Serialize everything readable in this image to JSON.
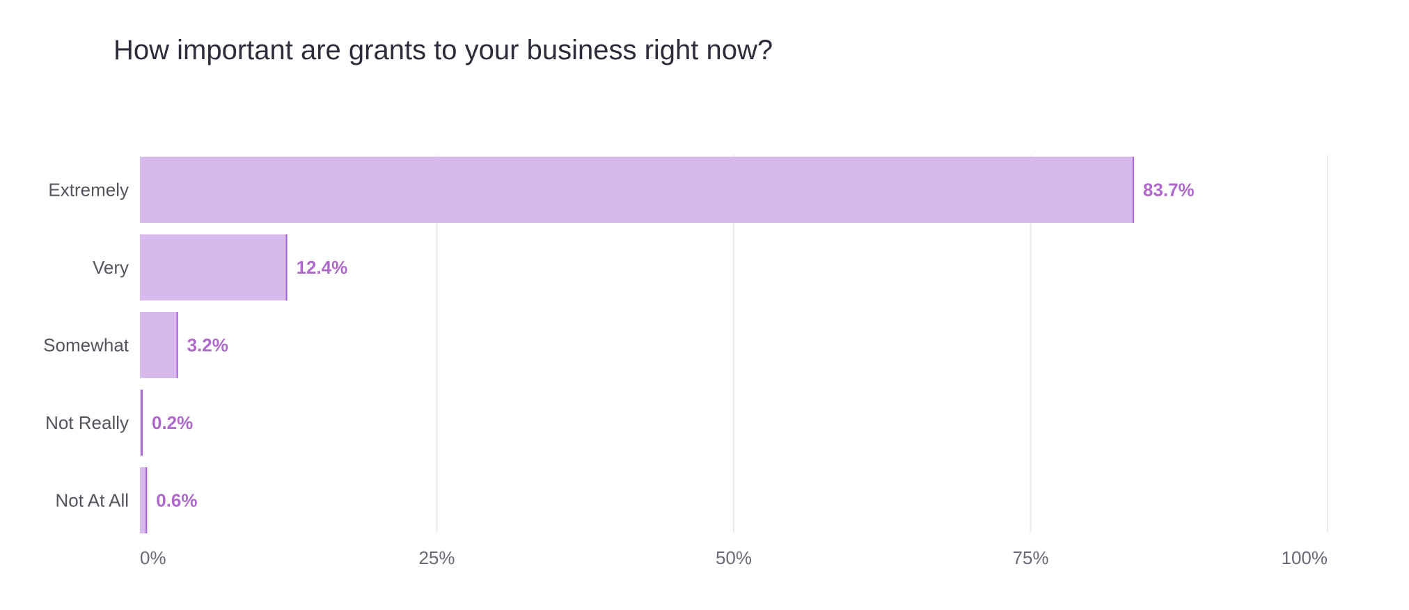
{
  "chart_data": {
    "type": "bar",
    "orientation": "horizontal",
    "title": "How important are grants to your business right now?",
    "categories": [
      "Extremely",
      "Very",
      "Somewhat",
      "Not Really",
      "Not At All"
    ],
    "values": [
      83.7,
      12.4,
      3.2,
      0.2,
      0.6
    ],
    "value_labels": [
      "83.7%",
      "12.4%",
      "3.2%",
      "0.2%",
      "0.6%"
    ],
    "xlim": [
      0,
      100
    ],
    "x_ticks": [
      0,
      25,
      50,
      75,
      100
    ],
    "x_tick_labels": [
      "0%",
      "25%",
      "50%",
      "75%",
      "100%"
    ],
    "xlabel": "",
    "ylabel": "",
    "grid": "vertical",
    "legend": "none"
  },
  "colors": {
    "bar_fill": "#d8b9eb",
    "bar_edge": "#a35fd6",
    "value_label": "#ad6acb",
    "gridline": "#ebe9ee",
    "category_label": "#55535c",
    "tick_label": "#6b6875",
    "title": "#2f2b3a"
  }
}
